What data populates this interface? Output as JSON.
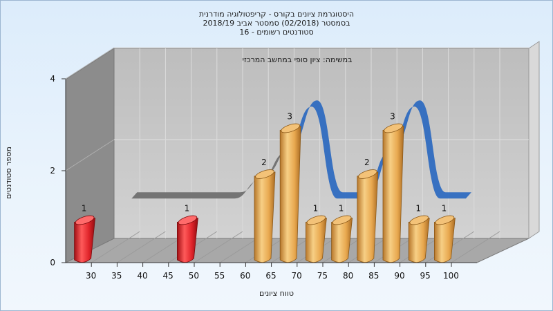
{
  "header": {
    "line1": "היסטוגרמת ציונים בקורס - קריפטולוגיה מודרנית",
    "line2": "בסמסטר  (02/2018)  סמסטר אביב 2018/19",
    "line3": "סטודנטים רשומים - 16"
  },
  "chart_data": {
    "type": "bar",
    "annotation": "במשימה: ציון סופי במחשב המרכזי",
    "xlabel": "טווח ציונים",
    "ylabel": "מספר סטודנטים",
    "ylim": [
      0,
      4
    ],
    "y_ticks": [
      "0",
      "2",
      "4"
    ],
    "categories": [
      "30",
      "35",
      "40",
      "45",
      "50",
      "55",
      "60",
      "65",
      "70",
      "75",
      "80",
      "85",
      "90",
      "95",
      "100"
    ],
    "bars": [
      {
        "x": 30,
        "value": 1,
        "label": "1",
        "color": "red"
      },
      {
        "x": 50,
        "value": 1,
        "label": "1",
        "color": "red"
      },
      {
        "x": 65,
        "value": 2,
        "label": "2",
        "color": "gold"
      },
      {
        "x": 70,
        "value": 3,
        "label": "3",
        "color": "gold"
      },
      {
        "x": 75,
        "value": 1,
        "label": "1",
        "color": "gold"
      },
      {
        "x": 80,
        "value": 1,
        "label": "1",
        "color": "gold"
      },
      {
        "x": 85,
        "value": 2,
        "label": "2",
        "color": "gold"
      },
      {
        "x": 90,
        "value": 3,
        "label": "3",
        "color": "gold"
      },
      {
        "x": 95,
        "value": 1,
        "label": "1",
        "color": "gold"
      },
      {
        "x": 100,
        "value": 1,
        "label": "1",
        "color": "gold"
      }
    ],
    "colors": {
      "red": "#e0242a",
      "gold": "#e4a24a",
      "ribbon_gray": "#6f6f6f",
      "ribbon_blue": "#2f6bc0",
      "wall": "#c9c9c9",
      "left_wall": "#8e8e8e",
      "floor": "#a9a9a9"
    }
  }
}
